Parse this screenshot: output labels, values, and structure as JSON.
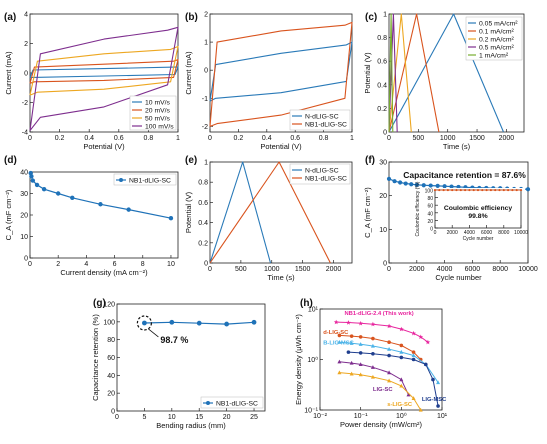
{
  "figure": {
    "panels": [
      {
        "id": "a",
        "label": "(a)"
      },
      {
        "id": "b",
        "label": "(b)"
      },
      {
        "id": "c",
        "label": "(c)"
      },
      {
        "id": "d",
        "label": "(d)"
      },
      {
        "id": "e",
        "label": "(e)"
      },
      {
        "id": "f",
        "label": "(f)"
      },
      {
        "id": "g",
        "label": "(g)"
      },
      {
        "id": "h",
        "label": "(h)"
      }
    ]
  },
  "chart_data": [
    {
      "id": "a",
      "type": "line",
      "xlabel": "Potential (V)",
      "ylabel": "Current (mA)",
      "xlim": [
        0,
        1
      ],
      "ylim": [
        -4,
        4
      ],
      "xticks": [
        0,
        0.2,
        0.4,
        0.6,
        0.8,
        1
      ],
      "xtick_labels": [
        "0",
        "0.2",
        "0.4",
        "0.6",
        "0.8",
        "1"
      ],
      "yticks": [
        -4,
        -2,
        0,
        2,
        4
      ],
      "ytick_labels": [
        "-4",
        "-2",
        "0",
        "2",
        "4"
      ],
      "legend_position": "bottom-right",
      "series": [
        {
          "name": "10 mV/s",
          "color": "#2a7ab8",
          "x": [
            0,
            0.02,
            0.5,
            0.98,
            1,
            0.98,
            0.5,
            0.02,
            0
          ],
          "y": [
            -0.3,
            0.2,
            0.3,
            0.4,
            0.4,
            -0.1,
            -0.2,
            -0.3,
            -0.3
          ]
        },
        {
          "name": "20 mV/s",
          "color": "#d9541e",
          "x": [
            0,
            0.03,
            0.5,
            0.97,
            1,
            0.97,
            0.5,
            0.03,
            0
          ],
          "y": [
            -0.7,
            0.4,
            0.6,
            0.8,
            0.9,
            -0.3,
            -0.5,
            -0.6,
            -0.7
          ]
        },
        {
          "name": "50 mV/s",
          "color": "#eda721",
          "x": [
            0,
            0.05,
            0.5,
            0.95,
            1,
            0.95,
            0.5,
            0.05,
            0
          ],
          "y": [
            -1.5,
            0.8,
            1.3,
            1.6,
            1.8,
            -0.6,
            -1.1,
            -1.3,
            -1.5
          ]
        },
        {
          "name": "100 mV/s",
          "color": "#7e2e8e",
          "x": [
            0,
            0.07,
            0.5,
            0.93,
            1,
            0.93,
            0.5,
            0.07,
            0
          ],
          "y": [
            -3.9,
            1.3,
            2.3,
            2.9,
            3.1,
            -0.8,
            -2.3,
            -3.0,
            -3.9
          ]
        }
      ]
    },
    {
      "id": "b",
      "type": "line",
      "xlabel": "Potential (V)",
      "ylabel": "Current (mA)",
      "xlim": [
        0,
        1
      ],
      "ylim": [
        -2.2,
        2
      ],
      "xticks": [
        0,
        0.2,
        0.4,
        0.6,
        0.8,
        1
      ],
      "xtick_labels": [
        "0",
        "0.2",
        "0.4",
        "0.6",
        "0.8",
        "1"
      ],
      "yticks": [
        -2,
        -1,
        0,
        1,
        2
      ],
      "ytick_labels": [
        "-2",
        "-1",
        "0",
        "1",
        "2"
      ],
      "legend_position": "bottom-right",
      "series": [
        {
          "name": "N-dLIG-SC",
          "color": "#2a7ab8",
          "x": [
            0,
            0.04,
            0.5,
            0.96,
            1,
            0.96,
            0.5,
            0.04,
            0
          ],
          "y": [
            -1.1,
            0.2,
            0.6,
            0.9,
            1.0,
            -0.4,
            -0.8,
            -1.0,
            -1.1
          ]
        },
        {
          "name": "NB1-dLIG-SC",
          "color": "#d9541e",
          "x": [
            0,
            0.05,
            0.5,
            0.95,
            1,
            0.95,
            0.5,
            0.05,
            0
          ],
          "y": [
            -2.0,
            1.0,
            1.4,
            1.6,
            1.7,
            -1.0,
            -1.6,
            -1.9,
            -2.0
          ]
        }
      ]
    },
    {
      "id": "c",
      "type": "line",
      "xlabel": "Time (s)",
      "ylabel": "Potential (V)",
      "xlim": [
        0,
        2300
      ],
      "ylim": [
        0,
        1
      ],
      "xticks": [
        0,
        500,
        1000,
        1500,
        2000
      ],
      "xtick_labels": [
        "0",
        "500",
        "1000",
        "1500",
        "2000"
      ],
      "yticks": [
        0,
        0.2,
        0.4,
        0.6,
        0.8,
        1
      ],
      "ytick_labels": [
        "0",
        "0.2",
        "0.4",
        "0.6",
        "0.8",
        "1"
      ],
      "legend_position": "top-right",
      "series": [
        {
          "name": "0.05 mA/cm²",
          "color": "#2a7ab8",
          "x": [
            0,
            1100,
            1950
          ],
          "y": [
            0,
            1,
            0
          ]
        },
        {
          "name": "0.1 mA/cm²",
          "color": "#d9541e",
          "x": [
            0,
            470,
            850
          ],
          "y": [
            0,
            1,
            0
          ]
        },
        {
          "name": "0.2 mA/cm²",
          "color": "#eda721",
          "x": [
            0,
            210,
            380
          ],
          "y": [
            0,
            1,
            0
          ]
        },
        {
          "name": "0.5 mA/cm²",
          "color": "#7e2e8e",
          "x": [
            0,
            75,
            140
          ],
          "y": [
            0,
            1,
            0
          ]
        },
        {
          "name": "1 mA/cm²",
          "color": "#77ac30",
          "x": [
            0,
            35,
            65
          ],
          "y": [
            0,
            1,
            0
          ]
        }
      ]
    },
    {
      "id": "d",
      "type": "line",
      "xlabel": "Current density (mA cm⁻²)",
      "ylabel": "C_A (mF cm⁻²)",
      "xlim": [
        0,
        10.5
      ],
      "ylim": [
        0,
        40
      ],
      "xticks": [
        0,
        2,
        4,
        6,
        8,
        10
      ],
      "xtick_labels": [
        "0",
        "2",
        "4",
        "6",
        "8",
        "10"
      ],
      "yticks": [
        0,
        10,
        20,
        30,
        40
      ],
      "ytick_labels": [
        "0",
        "10",
        "20",
        "30",
        "40"
      ],
      "legend_position": "top-right",
      "series": [
        {
          "name": "NB1-dLIG-SC",
          "color": "#1f72b8",
          "x": [
            0.05,
            0.1,
            0.2,
            0.5,
            1,
            2,
            3,
            5,
            7,
            10
          ],
          "y": [
            39.5,
            38,
            36,
            34,
            32,
            30,
            28,
            25,
            22.5,
            18.5
          ]
        }
      ]
    },
    {
      "id": "e",
      "type": "line",
      "xlabel": "Time (s)",
      "ylabel": "Potential (V)",
      "xlim": [
        0,
        2300
      ],
      "ylim": [
        0,
        1
      ],
      "xticks": [
        0,
        500,
        1000,
        1500,
        2000
      ],
      "xtick_labels": [
        "0",
        "500",
        "1000",
        "1500",
        "2000"
      ],
      "yticks": [
        0,
        0.2,
        0.4,
        0.6,
        0.8,
        1
      ],
      "ytick_labels": [
        "0",
        "0.2",
        "0.4",
        "0.6",
        "0.8",
        "1"
      ],
      "legend_position": "top-right",
      "series": [
        {
          "name": "N-dLIG-SC",
          "color": "#2a7ab8",
          "x": [
            0,
            530,
            980
          ],
          "y": [
            0,
            1,
            0
          ]
        },
        {
          "name": "NB1-dLIG-SC",
          "color": "#d9541e",
          "x": [
            0,
            1120,
            1950
          ],
          "y": [
            0,
            1,
            0
          ]
        }
      ]
    },
    {
      "id": "f",
      "type": "line",
      "xlabel": "Cycle number",
      "ylabel": "C_A (mF cm⁻²)",
      "xlim": [
        0,
        10000
      ],
      "ylim": [
        0,
        30
      ],
      "xticks": [
        0,
        2000,
        4000,
        6000,
        8000,
        10000
      ],
      "xtick_labels": [
        "0",
        "2000",
        "4000",
        "6000",
        "8000",
        "10000"
      ],
      "yticks": [
        0,
        10,
        20,
        30
      ],
      "ytick_labels": [
        "0",
        "10",
        "20",
        "30"
      ],
      "annotation": "Capacitance retention = 87.6%",
      "series": [
        {
          "name": "",
          "color": "#1f72b8",
          "x": [
            0,
            400,
            800,
            1200,
            1600,
            2000,
            2500,
            3000,
            3500,
            4000,
            4500,
            5000,
            5500,
            6000,
            6500,
            7000,
            7500,
            8000,
            8500,
            9000,
            9500,
            10000
          ],
          "y": [
            25,
            24.3,
            23.9,
            23.6,
            23.4,
            23.2,
            23.1,
            23,
            22.9,
            22.8,
            22.7,
            22.6,
            22.5,
            22.4,
            22.3,
            22.3,
            22.2,
            22.2,
            22.1,
            22.0,
            22.0,
            21.9
          ]
        }
      ],
      "inset": {
        "xlabel": "Cycle number",
        "ylabel": "Coulombic efficiency (%)",
        "xlim": [
          0,
          10000
        ],
        "ylim": [
          0,
          100
        ],
        "xticks": [
          0,
          2000,
          4000,
          6000,
          8000,
          10000
        ],
        "xtick_labels": [
          "0",
          "2000",
          "4000",
          "6000",
          "8000",
          "10000"
        ],
        "yticks": [
          0,
          20,
          40,
          60,
          80,
          100
        ],
        "ytick_labels": [
          "0",
          "20",
          "40",
          "60",
          "80",
          "100"
        ],
        "annotation": [
          "Coulombic efficiency",
          "99.8%"
        ],
        "series": [
          {
            "name": "",
            "color": "#d9541e",
            "x": [
              0,
              500,
              1000,
              1500,
              2000,
              2500,
              3000,
              3500,
              4000,
              4500,
              5000,
              5500,
              6000,
              6500,
              7000,
              7500,
              8000,
              8500,
              9000,
              9500,
              10000
            ],
            "y": [
              99.8,
              99.8,
              99.8,
              99.8,
              99.8,
              99.8,
              99.8,
              99.8,
              99.8,
              99.8,
              99.8,
              99.8,
              99.8,
              99.8,
              99.8,
              99.8,
              99.8,
              99.8,
              99.8,
              99.8,
              99.8
            ]
          }
        ]
      }
    },
    {
      "id": "g",
      "type": "line",
      "xlabel": "Bending radius (mm)",
      "ylabel": "Capacitance retention (%)",
      "xlim": [
        0,
        27
      ],
      "ylim": [
        0,
        120
      ],
      "xticks": [
        0,
        5,
        10,
        15,
        20,
        25
      ],
      "xtick_labels": [
        "0",
        "5",
        "10",
        "15",
        "20",
        "25"
      ],
      "yticks": [
        0,
        20,
        40,
        60,
        80,
        100,
        120
      ],
      "ytick_labels": [
        "0",
        "20",
        "40",
        "60",
        "80",
        "100",
        "120"
      ],
      "annotation": "98.7 %",
      "legend_position": "bottom-right",
      "series": [
        {
          "name": "NB1-dLIG-SC",
          "color": "#1f72b8",
          "x": [
            5,
            10,
            15,
            20,
            25
          ],
          "y": [
            98.7,
            99.5,
            98.5,
            97.5,
            99.5
          ]
        }
      ]
    },
    {
      "id": "h",
      "type": "line",
      "xscale": "log",
      "yscale": "log",
      "xlabel": "Power density (mW/cm²)",
      "ylabel": "Energy density (μWh cm⁻²)",
      "xlim": [
        0.01,
        10
      ],
      "ylim": [
        0.1,
        10
      ],
      "xticks": [
        0.01,
        0.1,
        1,
        10
      ],
      "xtick_labels": [
        "10⁻²",
        "10⁻¹",
        "10⁰",
        "10¹"
      ],
      "yticks": [
        0.1,
        1,
        10
      ],
      "ytick_labels": [
        "10⁻¹",
        "10⁰",
        "10¹"
      ],
      "series": [
        {
          "name": "NB1-dLIG-2.4 (This work)",
          "color": "#e8259e",
          "x": [
            0.025,
            0.05,
            0.1,
            0.2,
            0.5,
            1,
            2,
            3,
            4.5
          ],
          "y": [
            5.5,
            5.4,
            5.2,
            5.0,
            4.6,
            4.0,
            3.3,
            2.8,
            2.2
          ]
        },
        {
          "name": "d-LIG-SC",
          "color": "#d9541e",
          "x": [
            0.03,
            0.06,
            0.1,
            0.2,
            0.5,
            1,
            2,
            3
          ],
          "y": [
            3.0,
            2.9,
            2.8,
            2.6,
            2.2,
            1.9,
            1.4,
            1.0
          ]
        },
        {
          "name": "B-LIG-MSC",
          "color": "#4bb3e8",
          "x": [
            0.03,
            0.06,
            0.1,
            0.2,
            0.5,
            1,
            2,
            4,
            8
          ],
          "y": [
            2.2,
            2.1,
            2.0,
            1.85,
            1.6,
            1.4,
            1.2,
            0.8,
            0.35
          ]
        },
        {
          "name": "LIG-MSC",
          "color": "#1f3e8e",
          "x": [
            0.05,
            0.1,
            0.2,
            0.5,
            1,
            2,
            4,
            6,
            8
          ],
          "y": [
            1.4,
            1.35,
            1.3,
            1.2,
            1.1,
            1.0,
            0.8,
            0.4,
            0.12
          ]
        },
        {
          "name": "LIG-SC",
          "color": "#7e2e8e",
          "x": [
            0.03,
            0.06,
            0.1,
            0.2,
            0.5,
            1,
            1.5
          ],
          "y": [
            0.9,
            0.85,
            0.8,
            0.7,
            0.55,
            0.4,
            0.2
          ]
        },
        {
          "name": "s-LIG-SC",
          "color": "#eda721",
          "x": [
            0.03,
            0.06,
            0.1,
            0.2,
            0.5,
            1,
            2,
            3
          ],
          "y": [
            0.55,
            0.52,
            0.5,
            0.45,
            0.38,
            0.3,
            0.17,
            0.1
          ]
        }
      ]
    }
  ]
}
